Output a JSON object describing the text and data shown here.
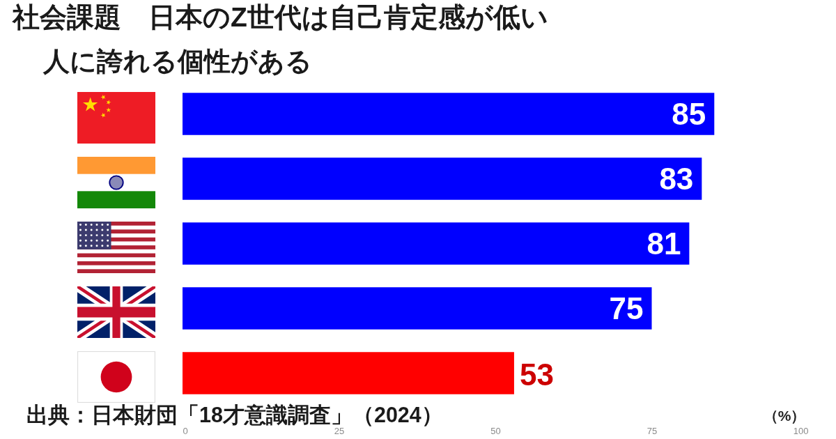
{
  "chart_data": {
    "type": "bar",
    "orientation": "horizontal",
    "title": "社会課題　日本のZ世代は自己肯定感が低い",
    "subtitle": "人に誇れる個性がある",
    "xlabel": "（%）",
    "categories": [
      null,
      null,
      null,
      null,
      null
    ],
    "values": [
      85,
      83,
      81,
      75,
      53
    ],
    "colors": [
      "#0000ff",
      "#0000ff",
      "#0000ff",
      "#0000ff",
      "#ff0000"
    ],
    "xlim": [
      0,
      100
    ],
    "xticks": [
      0,
      25,
      50,
      75,
      100
    ],
    "data_labels": true,
    "annotations": [
      "出典：日本財団「18才意識調査」（2024）"
    ]
  }
}
